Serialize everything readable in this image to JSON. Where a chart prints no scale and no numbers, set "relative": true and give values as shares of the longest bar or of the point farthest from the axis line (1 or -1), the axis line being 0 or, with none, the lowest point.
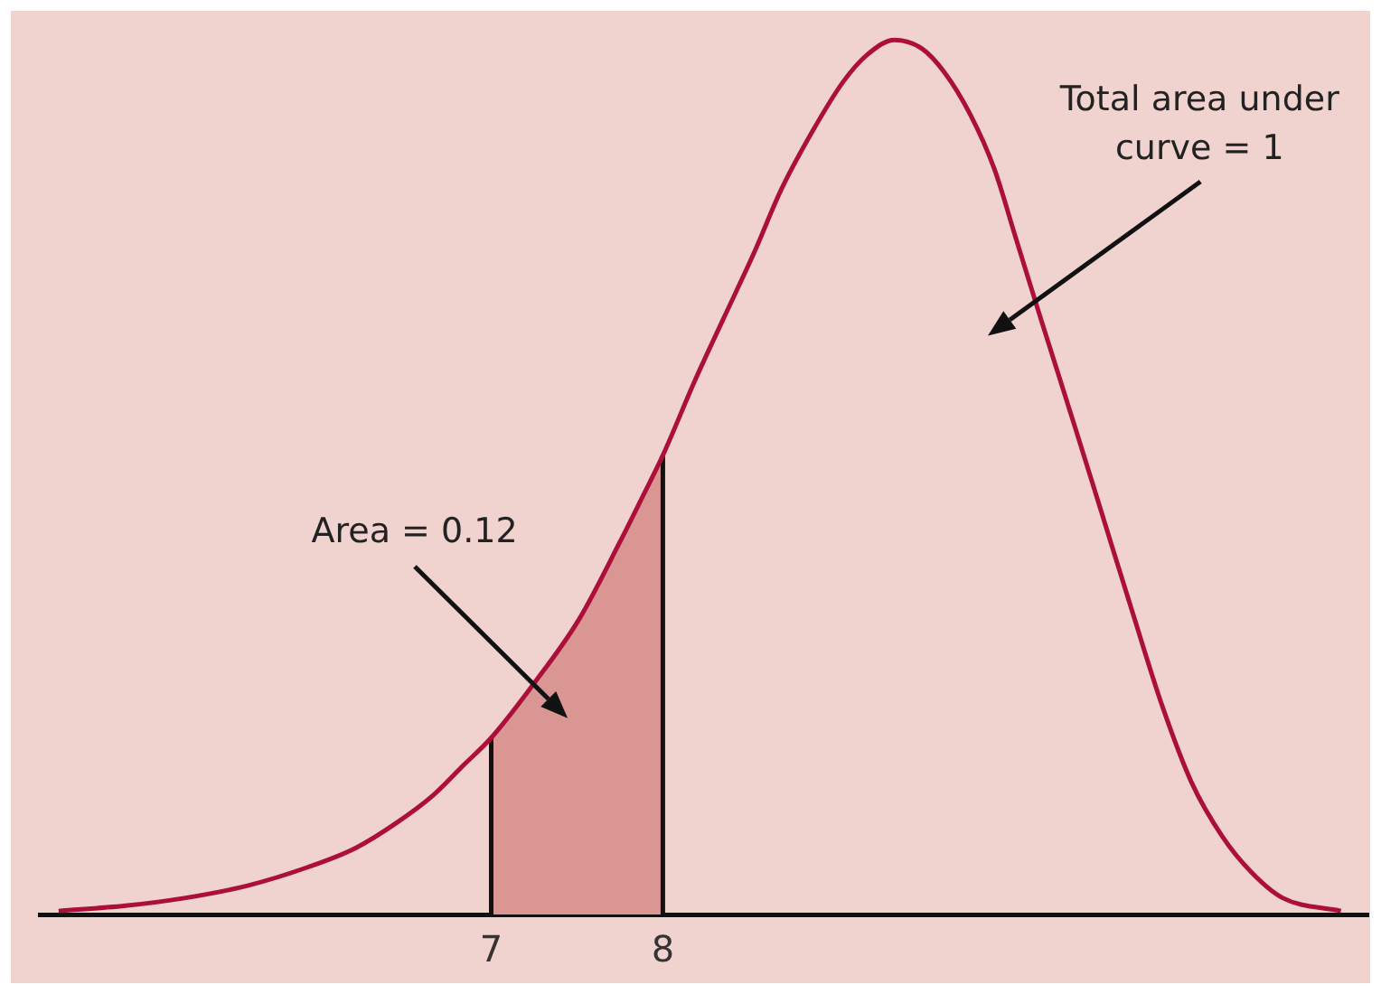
{
  "chart_data": {
    "type": "line",
    "relative": true,
    "xlim": [
      4.37,
      12.11
    ],
    "xticks": [
      7,
      8
    ],
    "series": [
      {
        "color": "#ab0f3a",
        "x": [
          4.48,
          4.87,
          5.22,
          5.58,
          5.93,
          6.21,
          6.45,
          6.66,
          6.84,
          7,
          7.26,
          7.51,
          7.75,
          7.89,
          8,
          8.19,
          8.35,
          8.53,
          8.69,
          8.87,
          9.05,
          9.19,
          9.35,
          9.51,
          9.64,
          9.79,
          9.93,
          10.06,
          10.21,
          10.4,
          10.56,
          10.74,
          10.91,
          11.08,
          11.26,
          11.43,
          11.61,
          11.95
        ],
        "values": [
          0.004,
          0.01,
          0.019,
          0.033,
          0.054,
          0.076,
          0.105,
          0.136,
          0.171,
          0.202,
          0.267,
          0.337,
          0.426,
          0.481,
          0.525,
          0.612,
          0.68,
          0.756,
          0.829,
          0.895,
          0.952,
          0.983,
          1,
          0.99,
          0.963,
          0.915,
          0.853,
          0.771,
          0.676,
          0.558,
          0.457,
          0.343,
          0.238,
          0.151,
          0.089,
          0.048,
          0.019,
          0.004
        ]
      },
      {
        "color": "#111111",
        "x": [
          7,
          7
        ],
        "values": [
          0,
          0.202
        ]
      },
      {
        "color": "#111111",
        "x": [
          8,
          8
        ],
        "values": [
          0,
          0.525
        ]
      },
      {
        "type": "area",
        "color": "#d99692",
        "x": [
          7,
          7.26,
          7.51,
          7.75,
          7.89,
          8
        ],
        "values": [
          0.202,
          0.267,
          0.337,
          0.426,
          0.481,
          0.525
        ]
      }
    ],
    "annotations": [
      "Area = 0.12",
      "Total area under curve = 1"
    ]
  }
}
